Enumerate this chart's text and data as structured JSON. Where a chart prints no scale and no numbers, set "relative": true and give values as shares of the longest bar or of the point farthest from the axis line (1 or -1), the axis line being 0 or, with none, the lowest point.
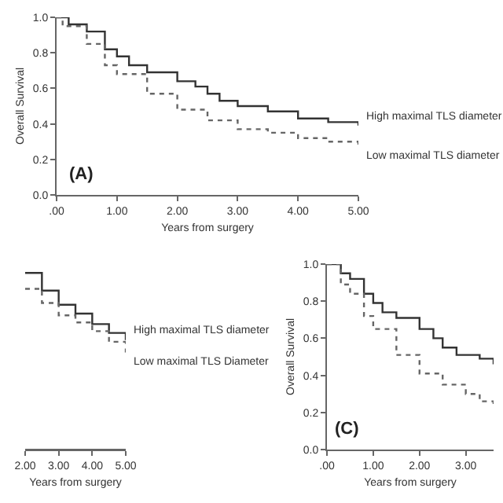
{
  "chart_data": [
    {
      "type": "step",
      "xlabel": "Years from surgery",
      "ylabel": "Overall Survival",
      "annotations": [
        "(A)"
      ],
      "xlim": [
        0,
        5
      ],
      "ylim": [
        0,
        1
      ],
      "xticks": [
        {
          "value": 0,
          "label": ".00"
        },
        {
          "value": 1,
          "label": "1.00"
        },
        {
          "value": 2,
          "label": "2.00"
        },
        {
          "value": 3,
          "label": "3.00"
        },
        {
          "value": 4,
          "label": "4.00"
        },
        {
          "value": 5,
          "label": "5.00"
        }
      ],
      "yticks": [
        {
          "value": 0,
          "label": "0.0"
        },
        {
          "value": 0.2,
          "label": "0.2"
        },
        {
          "value": 0.4,
          "label": "0.4"
        },
        {
          "value": 0.6,
          "label": "0.6"
        },
        {
          "value": 0.8,
          "label": "0.8"
        },
        {
          "value": 1,
          "label": "1.0"
        }
      ],
      "grid": false,
      "marker": "none",
      "series": [
        {
          "name": "High maximal TLS diameter",
          "color": "#333333",
          "line_style": "solid",
          "x": [
            0,
            0.2,
            0.5,
            0.8,
            1,
            1.2,
            1.5,
            2,
            2.3,
            2.5,
            2.7,
            3,
            3.5,
            4,
            4.5,
            5
          ],
          "values": [
            1,
            0.96,
            0.92,
            0.82,
            0.78,
            0.73,
            0.69,
            0.64,
            0.61,
            0.57,
            0.53,
            0.5,
            0.47,
            0.43,
            0.41,
            0.39
          ]
        },
        {
          "name": "Low maximal TLS diameter",
          "color": "#666666",
          "line_style": "dotted",
          "x": [
            0,
            0.1,
            0.5,
            0.8,
            1,
            1.5,
            2,
            2.5,
            3,
            3.5,
            4,
            4.5,
            5
          ],
          "values": [
            1,
            0.95,
            0.85,
            0.73,
            0.68,
            0.57,
            0.48,
            0.42,
            0.37,
            0.35,
            0.32,
            0.3,
            0.27
          ]
        }
      ]
    },
    {
      "type": "step",
      "xlabel": "Years from surgery",
      "relative": true,
      "tick_labels": "x",
      "xlim": [
        2,
        5
      ],
      "xticks": [
        {
          "value": 2,
          "label": "2.00"
        },
        {
          "value": 3,
          "label": "3.00"
        },
        {
          "value": 4,
          "label": "4.00"
        },
        {
          "value": 5,
          "label": "5.00"
        }
      ],
      "grid": false,
      "marker": "none",
      "series": [
        {
          "name": "High maximal TLS diameter",
          "color": "#333333",
          "line_style": "solid",
          "x": [
            2,
            2.5,
            3,
            3.5,
            4,
            4.5,
            5
          ],
          "values": [
            1,
            0.9,
            0.82,
            0.77,
            0.71,
            0.66,
            0.62
          ]
        },
        {
          "name": "Low maximal TLS Diameter",
          "color": "#666666",
          "line_style": "dotted",
          "x": [
            2,
            2.5,
            3,
            3.5,
            4,
            4.5,
            5
          ],
          "values": [
            0.91,
            0.83,
            0.76,
            0.72,
            0.67,
            0.61,
            0.55
          ]
        }
      ]
    },
    {
      "type": "step",
      "xlabel": "Years from surgery",
      "ylabel": "Overall Survival",
      "annotations": [
        "(C)"
      ],
      "xlim": [
        0,
        3.6
      ],
      "ylim": [
        0,
        1
      ],
      "xticks": [
        {
          "value": 0,
          "label": ".00"
        },
        {
          "value": 1,
          "label": "1.00"
        },
        {
          "value": 2,
          "label": "2.00"
        },
        {
          "value": 3,
          "label": "3.00"
        }
      ],
      "yticks": [
        {
          "value": 0,
          "label": "0.0"
        },
        {
          "value": 0.2,
          "label": "0.2"
        },
        {
          "value": 0.4,
          "label": "0.4"
        },
        {
          "value": 0.6,
          "label": "0.6"
        },
        {
          "value": 0.8,
          "label": "0.8"
        },
        {
          "value": 1,
          "label": "1.0"
        }
      ],
      "grid": false,
      "marker": "none",
      "series": [
        {
          "color": "#333333",
          "line_style": "solid",
          "x": [
            0,
            0.3,
            0.5,
            0.8,
            1,
            1.2,
            1.5,
            2,
            2.3,
            2.5,
            2.8,
            3,
            3.3,
            3.6
          ],
          "values": [
            1,
            0.95,
            0.92,
            0.84,
            0.79,
            0.74,
            0.71,
            0.65,
            0.6,
            0.55,
            0.51,
            0.51,
            0.49,
            0.46
          ]
        },
        {
          "color": "#666666",
          "line_style": "dotted",
          "x": [
            0,
            0.3,
            0.5,
            0.8,
            1,
            1.5,
            2,
            2.5,
            3,
            3.3,
            3.6
          ],
          "values": [
            1,
            0.89,
            0.84,
            0.72,
            0.65,
            0.51,
            0.41,
            0.35,
            0.3,
            0.26,
            0.24
          ]
        }
      ]
    }
  ]
}
